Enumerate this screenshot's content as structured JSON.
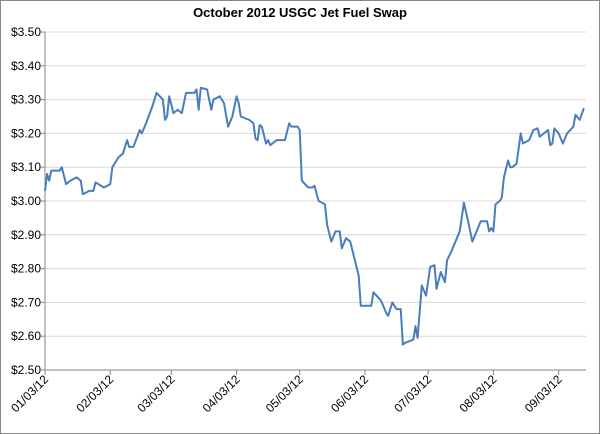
{
  "chart_data": {
    "type": "line",
    "title": "October 2012 USGC Jet Fuel Swap",
    "x": [
      "01/03/12",
      "01/04/12",
      "01/05/12",
      "01/06/12",
      "01/08/12",
      "01/10/12",
      "01/11/12",
      "01/13/12",
      "01/15/12",
      "01/18/12",
      "01/20/12",
      "01/21/12",
      "01/24/12",
      "01/26/12",
      "01/27/12",
      "01/31/12",
      "02/03/12",
      "02/04/12",
      "02/07/12",
      "02/09/12",
      "02/11/12",
      "02/12/12",
      "02/14/12",
      "02/17/12",
      "02/18/12",
      "02/20/12",
      "02/23/12",
      "02/25/12",
      "02/28/12",
      "02/29/12",
      "03/01/12",
      "03/02/12",
      "03/04/12",
      "03/06/12",
      "03/08/12",
      "03/10/12",
      "03/12/12",
      "03/14/12",
      "03/15/12",
      "03/16/12",
      "03/17/12",
      "03/20/12",
      "03/22/12",
      "03/23/12",
      "03/26/12",
      "03/28/12",
      "03/30/12",
      "04/01/12",
      "04/03/12",
      "04/04/12",
      "04/05/12",
      "04/09/12",
      "04/11/12",
      "04/12/12",
      "04/13/12",
      "04/14/12",
      "04/15/12",
      "04/17/12",
      "04/18/12",
      "04/19/12",
      "04/22/12",
      "04/24/12",
      "04/26/12",
      "04/28/12",
      "04/29/12",
      "05/02/12",
      "05/03/12",
      "05/04/12",
      "05/07/12",
      "05/09/12",
      "05/10/12",
      "05/12/12",
      "05/15/12",
      "05/16/12",
      "05/18/12",
      "05/20/12",
      "05/22/12",
      "05/23/12",
      "05/25/12",
      "05/27/12",
      "05/29/12",
      "05/31/12",
      "06/01/12",
      "06/04/12",
      "06/06/12",
      "06/07/12",
      "06/10/12",
      "06/11/12",
      "06/13/12",
      "06/14/12",
      "06/16/12",
      "06/18/12",
      "06/20/12",
      "06/21/12",
      "06/22/12",
      "06/26/12",
      "06/27/12",
      "06/28/12",
      "06/30/12",
      "07/02/12",
      "07/04/12",
      "07/06/12",
      "07/07/12",
      "07/09/12",
      "07/11/12",
      "07/12/12",
      "07/14/12",
      "07/16/12",
      "07/18/12",
      "07/20/12",
      "07/22/12",
      "07/24/12",
      "07/26/12",
      "07/28/12",
      "07/31/12",
      "08/01/12",
      "08/02/12",
      "08/03/12",
      "08/04/12",
      "08/06/12",
      "08/07/12",
      "08/08/12",
      "08/10/12",
      "08/11/12",
      "08/12/12",
      "08/14/12",
      "08/16/12",
      "08/17/12",
      "08/20/12",
      "08/22/12",
      "08/24/12",
      "08/25/12",
      "08/27/12",
      "08/29/12",
      "08/30/12",
      "08/31/12",
      "09/01/12",
      "09/03/12",
      "09/05/12",
      "09/07/12",
      "09/10/12",
      "09/11/12",
      "09/13/12",
      "09/15/12"
    ],
    "series": [
      {
        "color": "#4a7ebb",
        "values": [
          3.03,
          3.08,
          3.06,
          3.09,
          3.09,
          3.09,
          3.1,
          3.05,
          3.06,
          3.07,
          3.06,
          3.02,
          3.03,
          3.03,
          3.055,
          3.04,
          3.05,
          3.1,
          3.13,
          3.14,
          3.18,
          3.16,
          3.16,
          3.21,
          3.2,
          3.23,
          3.28,
          3.32,
          3.3,
          3.24,
          3.25,
          3.31,
          3.26,
          3.27,
          3.26,
          3.32,
          3.32,
          3.32,
          3.33,
          3.27,
          3.335,
          3.33,
          3.27,
          3.3,
          3.31,
          3.29,
          3.22,
          3.25,
          3.31,
          3.29,
          3.25,
          3.24,
          3.23,
          3.185,
          3.18,
          3.225,
          3.22,
          3.17,
          3.18,
          3.165,
          3.18,
          3.18,
          3.18,
          3.23,
          3.22,
          3.22,
          3.21,
          3.06,
          3.04,
          3.04,
          3.045,
          3.0,
          2.99,
          2.93,
          2.88,
          2.91,
          2.91,
          2.86,
          2.89,
          2.88,
          2.83,
          2.78,
          2.69,
          2.69,
          2.69,
          2.73,
          2.71,
          2.7,
          2.67,
          2.66,
          2.7,
          2.68,
          2.68,
          2.575,
          2.58,
          2.59,
          2.63,
          2.595,
          2.75,
          2.72,
          2.805,
          2.81,
          2.74,
          2.79,
          2.76,
          2.825,
          2.85,
          2.88,
          2.91,
          2.995,
          2.94,
          2.88,
          2.91,
          2.94,
          2.94,
          2.91,
          2.92,
          2.91,
          2.99,
          3.0,
          3.01,
          3.07,
          3.12,
          3.1,
          3.1,
          3.11,
          3.2,
          3.17,
          3.18,
          3.21,
          3.215,
          3.19,
          3.2,
          3.21,
          3.165,
          3.17,
          3.215,
          3.2,
          3.17,
          3.2,
          3.22,
          3.255,
          3.24,
          3.275
        ]
      }
    ],
    "xlim": [
      "01/03/12",
      "09/16/12"
    ],
    "xticks": [
      "01/03/12",
      "02/03/12",
      "03/03/12",
      "04/03/12",
      "05/03/12",
      "06/03/12",
      "07/03/12",
      "08/03/12",
      "09/03/12"
    ],
    "ylim": [
      2.5,
      3.5
    ],
    "yticks": [
      {
        "value": 2.5,
        "label": "$2.50"
      },
      {
        "value": 2.6,
        "label": "$2.60"
      },
      {
        "value": 2.7,
        "label": "$2.70"
      },
      {
        "value": 2.8,
        "label": "$2.80"
      },
      {
        "value": 2.9,
        "label": "$2.90"
      },
      {
        "value": 3.0,
        "label": "$3.00"
      },
      {
        "value": 3.1,
        "label": "$3.10"
      },
      {
        "value": 3.2,
        "label": "$3.20"
      },
      {
        "value": 3.3,
        "label": "$3.30"
      },
      {
        "value": 3.4,
        "label": "$3.40"
      },
      {
        "value": 3.5,
        "label": "$3.50"
      }
    ],
    "grid": true
  }
}
